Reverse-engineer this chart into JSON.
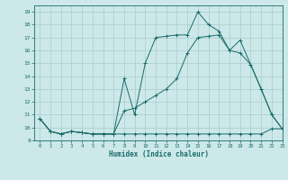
{
  "xlabel": "Humidex (Indice chaleur)",
  "xlim": [
    -0.5,
    23
  ],
  "ylim": [
    9,
    19.5
  ],
  "yticks": [
    9,
    10,
    11,
    12,
    13,
    14,
    15,
    16,
    17,
    18,
    19
  ],
  "xticks": [
    0,
    1,
    2,
    3,
    4,
    5,
    6,
    7,
    8,
    9,
    10,
    11,
    12,
    13,
    14,
    15,
    16,
    17,
    18,
    19,
    20,
    21,
    22,
    23
  ],
  "bg_color": "#cce8e8",
  "grid_color": "#aacccc",
  "line_color": "#1a6b6b",
  "line1_x": [
    0,
    1,
    2,
    3,
    4,
    5,
    6,
    7,
    8,
    9,
    10,
    11,
    12,
    13,
    14,
    15,
    16,
    17,
    18,
    19,
    20,
    21,
    22,
    23
  ],
  "line1_y": [
    10.7,
    9.7,
    9.5,
    9.7,
    9.6,
    9.5,
    9.5,
    9.5,
    13.8,
    11.0,
    15.0,
    17.0,
    17.1,
    17.2,
    17.2,
    19.0,
    18.0,
    17.5,
    16.0,
    16.8,
    14.9,
    13.0,
    11.0,
    9.9
  ],
  "line2_x": [
    0,
    1,
    2,
    3,
    4,
    5,
    6,
    7,
    8,
    9,
    10,
    11,
    12,
    13,
    14,
    15,
    16,
    17,
    18,
    19,
    20,
    21,
    22,
    23
  ],
  "line2_y": [
    10.7,
    9.7,
    9.5,
    9.7,
    9.6,
    9.5,
    9.5,
    9.5,
    11.3,
    11.5,
    12.0,
    12.5,
    13.0,
    13.8,
    15.8,
    17.0,
    17.1,
    17.2,
    16.0,
    15.8,
    14.9,
    13.0,
    11.0,
    9.9
  ],
  "line3_x": [
    0,
    1,
    2,
    3,
    4,
    5,
    6,
    7,
    8,
    9,
    10,
    11,
    12,
    13,
    14,
    15,
    16,
    17,
    18,
    19,
    20,
    21,
    22,
    23
  ],
  "line3_y": [
    10.7,
    9.7,
    9.5,
    9.7,
    9.6,
    9.5,
    9.5,
    9.5,
    9.5,
    9.5,
    9.5,
    9.5,
    9.5,
    9.5,
    9.5,
    9.5,
    9.5,
    9.5,
    9.5,
    9.5,
    9.5,
    9.5,
    9.9,
    9.9
  ]
}
